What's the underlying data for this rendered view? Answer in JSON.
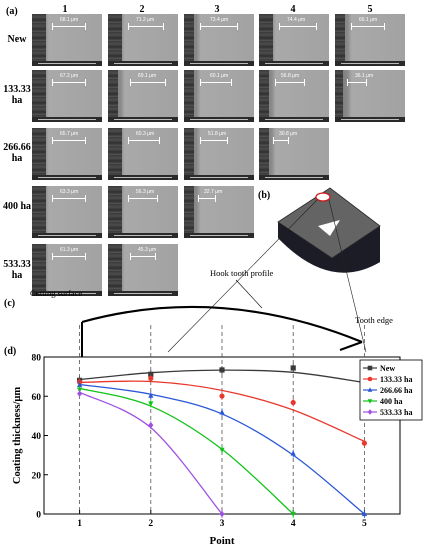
{
  "panel_labels": {
    "a": "(a)",
    "b": "(b)",
    "c": "(c)",
    "d": "(d)"
  },
  "sem_grid": {
    "columns": [
      "1",
      "2",
      "3",
      "4",
      "5"
    ],
    "rows": [
      {
        "label": "New",
        "values": [
          "68.1 μm",
          "71.2 μm",
          "73.4 μm",
          "74.4 μm",
          "66.1 μm"
        ]
      },
      {
        "label": "133.33 ha",
        "values": [
          "67.2 μm",
          "69.1 μm",
          "60.1 μm",
          "56.8 μm",
          "36.1 μm"
        ]
      },
      {
        "label": "266.66 ha",
        "values": [
          "65.7 μm",
          "60.3 μm",
          "51.8 μm",
          "30.8 μm"
        ]
      },
      {
        "label": "400 ha",
        "values": [
          "63.3 μm",
          "56.3 μm",
          "32.7 μm"
        ]
      },
      {
        "label": "533.33 ha",
        "values": [
          "61.3 μm",
          "45.3 μm"
        ]
      }
    ]
  },
  "schematic": {
    "cutting_surface": "Cutting surface",
    "hook_tooth_profile": "Hook tooth profile",
    "tooth_edge": "Tooth edge"
  },
  "chart_data": {
    "type": "line",
    "xlabel": "Point",
    "ylabel": "Coating thickness/μm",
    "x": [
      1,
      2,
      3,
      4,
      5
    ],
    "xlim": [
      0.5,
      5.5
    ],
    "ylim": [
      0,
      80
    ],
    "xticks": [
      1,
      2,
      3,
      4,
      5
    ],
    "yticks": [
      0,
      20,
      40,
      60,
      80
    ],
    "legend_position": "right",
    "grid": false,
    "series": [
      {
        "name": "New",
        "color": "#3a3a3a",
        "marker": "square",
        "points": [
          [
            1,
            68.1
          ],
          [
            2,
            71.2
          ],
          [
            3,
            73.4
          ],
          [
            4,
            74.4
          ],
          [
            5,
            66.1
          ]
        ],
        "fit": [
          [
            1,
            68.5
          ],
          [
            2,
            72.0
          ],
          [
            3,
            73.3
          ],
          [
            4,
            72.2
          ],
          [
            5,
            67.0
          ]
        ]
      },
      {
        "name": "133.33 ha",
        "color": "#e8382d",
        "marker": "circle",
        "points": [
          [
            1,
            67.2
          ],
          [
            2,
            69.1
          ],
          [
            3,
            60.1
          ],
          [
            4,
            56.8
          ],
          [
            5,
            36.1
          ]
        ],
        "fit": [
          [
            1,
            67.0
          ],
          [
            2,
            67.5
          ],
          [
            3,
            63.0
          ],
          [
            4,
            53.0
          ],
          [
            5,
            37.0
          ]
        ]
      },
      {
        "name": "266.66 ha",
        "color": "#2b57d6",
        "marker": "triangle",
        "points": [
          [
            1,
            65.7
          ],
          [
            2,
            60.3
          ],
          [
            3,
            51.8
          ],
          [
            4,
            30.8
          ],
          [
            5,
            0
          ]
        ],
        "fit": [
          [
            1,
            66.0
          ],
          [
            2,
            61.0
          ],
          [
            3,
            51.0
          ],
          [
            4,
            30.0
          ],
          [
            5,
            0
          ]
        ]
      },
      {
        "name": "400 ha",
        "color": "#12c21a",
        "marker": "triangle-down",
        "points": [
          [
            1,
            63.3
          ],
          [
            2,
            56.3
          ],
          [
            3,
            32.7
          ],
          [
            4,
            0
          ]
        ],
        "fit": [
          [
            1,
            64.0
          ],
          [
            2,
            55.0
          ],
          [
            3,
            33.0
          ],
          [
            4,
            0
          ]
        ]
      },
      {
        "name": "533.33 ha",
        "color": "#a050e0",
        "marker": "diamond",
        "points": [
          [
            1,
            61.3
          ],
          [
            2,
            45.3
          ],
          [
            3,
            0
          ]
        ],
        "fit": [
          [
            1,
            62.0
          ],
          [
            2,
            44.0
          ],
          [
            3,
            0
          ]
        ]
      }
    ]
  }
}
